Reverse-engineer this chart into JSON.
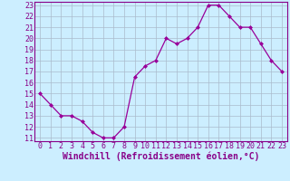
{
  "x": [
    0,
    1,
    2,
    3,
    4,
    5,
    6,
    7,
    8,
    9,
    10,
    11,
    12,
    13,
    14,
    15,
    16,
    17,
    18,
    19,
    20,
    21,
    22,
    23
  ],
  "y": [
    15,
    14,
    13,
    13,
    12.5,
    11.5,
    11,
    11,
    12,
    16.5,
    17.5,
    18,
    20,
    19.5,
    20,
    21,
    23,
    23,
    22,
    21,
    21,
    19.5,
    18,
    17
  ],
  "line_color": "#990099",
  "marker": "D",
  "marker_size": 2.0,
  "background_color": "#cceeff",
  "grid_color": "#aabbcc",
  "xlabel": "Windchill (Refroidissement éolien,°C)",
  "xlim": [
    -0.5,
    23.5
  ],
  "ylim_min": 10.7,
  "ylim_max": 23.3,
  "yticks": [
    11,
    12,
    13,
    14,
    15,
    16,
    17,
    18,
    19,
    20,
    21,
    22,
    23
  ],
  "xticks": [
    0,
    1,
    2,
    3,
    4,
    5,
    6,
    7,
    8,
    9,
    10,
    11,
    12,
    13,
    14,
    15,
    16,
    17,
    18,
    19,
    20,
    21,
    22,
    23
  ],
  "tick_label_fontsize": 6.0,
  "xlabel_fontsize": 7.0,
  "tick_color": "#880088",
  "spine_color": "#880088"
}
